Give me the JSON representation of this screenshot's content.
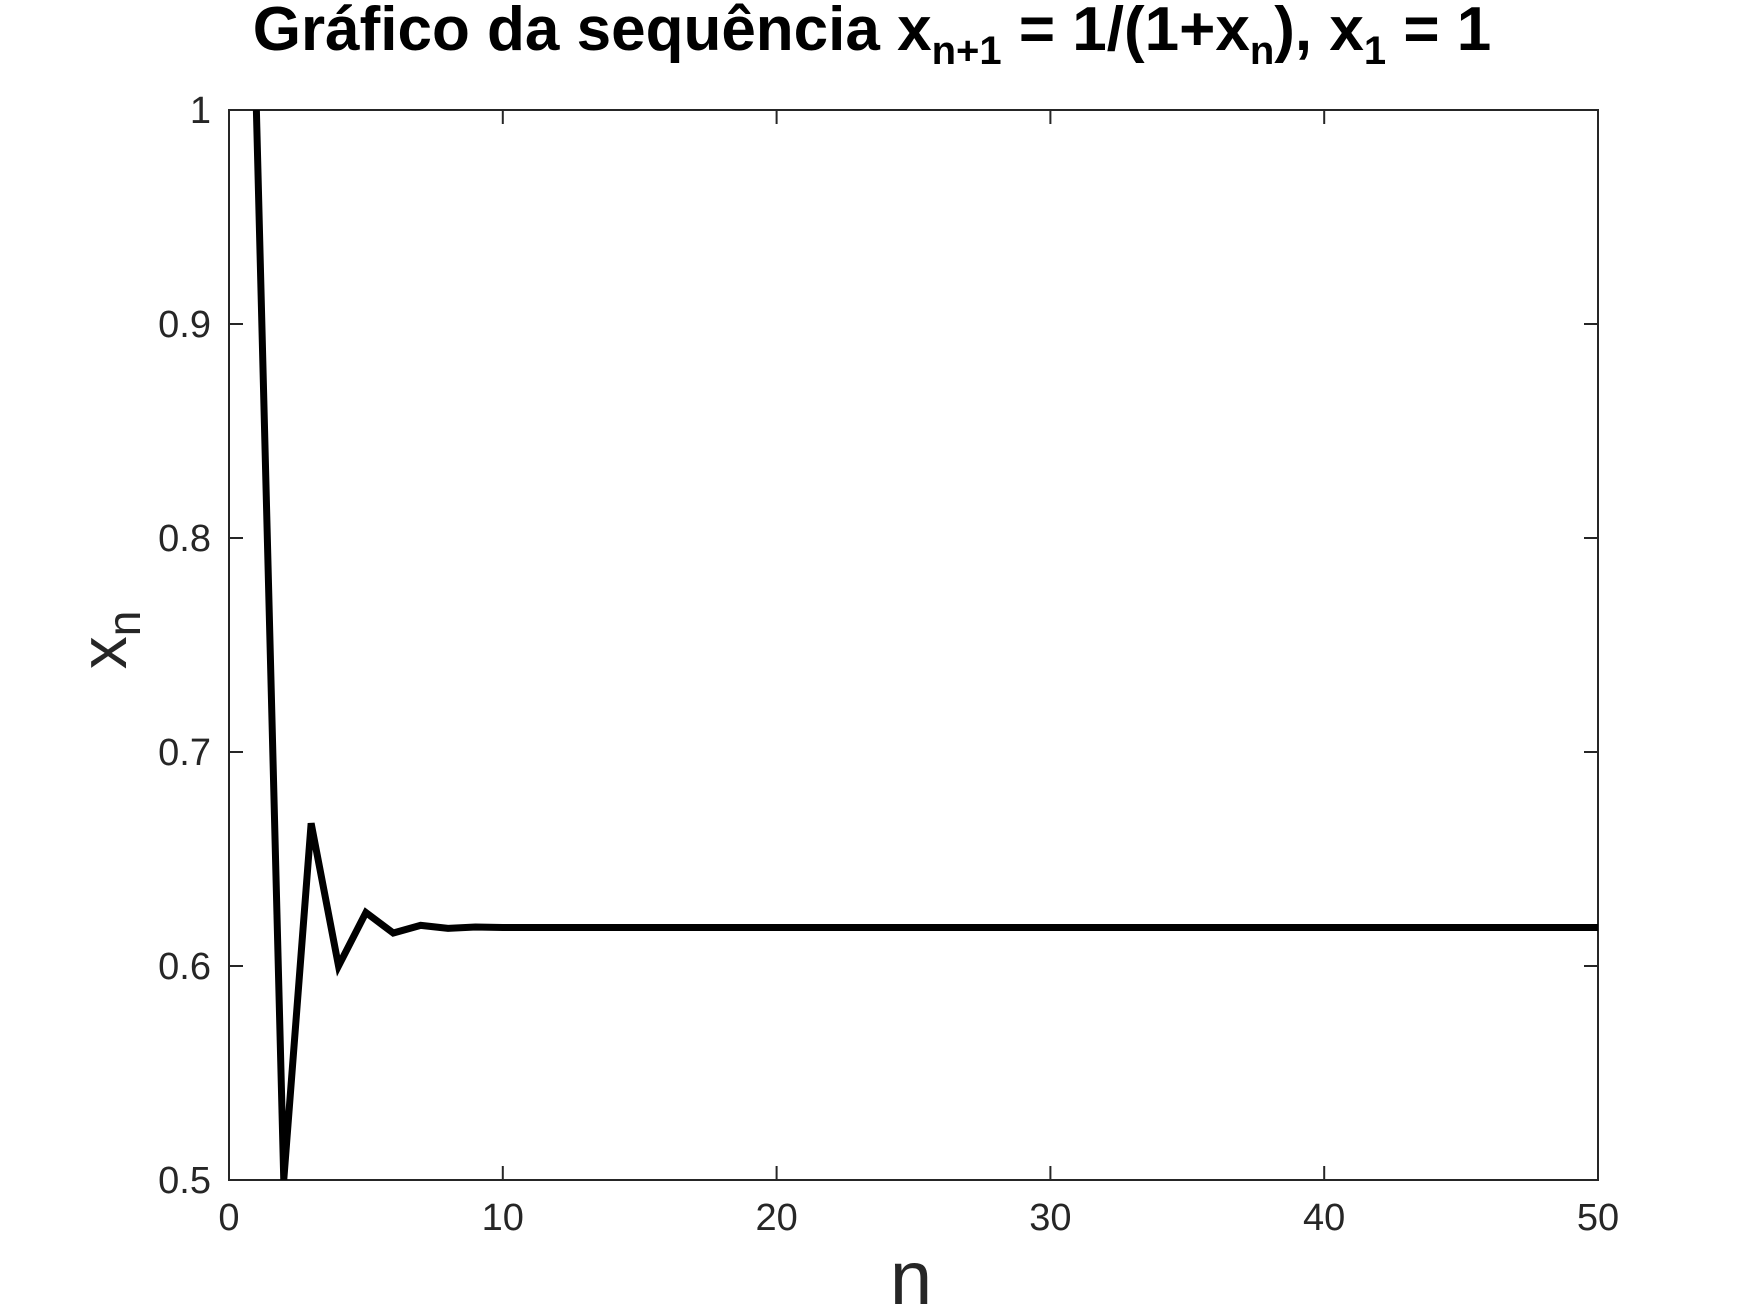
{
  "title": {
    "prefix": "Gráfico da sequência x",
    "sub1": "n+1",
    "mid1": " = 1/(1+x",
    "sub2": "n",
    "mid2": "), x",
    "sub3": "1",
    "suffix": " = 1"
  },
  "chart_data": {
    "type": "line",
    "xlabel": "n",
    "ylabel_main": "x",
    "ylabel_sub": "n",
    "xlim": [
      0,
      50
    ],
    "ylim": [
      0.5,
      1
    ],
    "xticks": [
      0,
      10,
      20,
      30,
      40,
      50
    ],
    "xtick_labels": [
      "0",
      "10",
      "20",
      "30",
      "40",
      "50"
    ],
    "yticks": [
      0.5,
      0.6,
      0.7,
      0.8,
      0.9,
      1
    ],
    "ytick_labels": [
      "0.5",
      "0.6",
      "0.7",
      "0.8",
      "0.9",
      "1"
    ],
    "grid": false,
    "line_color": "#000000",
    "series": [
      {
        "x": [
          1,
          2,
          3,
          4,
          5,
          6,
          7,
          8,
          9,
          10,
          11,
          12,
          13,
          14,
          15,
          16,
          17,
          18,
          19,
          20,
          21,
          22,
          23,
          24,
          25,
          26,
          27,
          28,
          29,
          30,
          31,
          32,
          33,
          34,
          35,
          36,
          37,
          38,
          39,
          40,
          41,
          42,
          43,
          44,
          45,
          46,
          47,
          48,
          49,
          50
        ],
        "values": [
          1,
          0.5,
          0.6667,
          0.6,
          0.625,
          0.6154,
          0.619,
          0.6176,
          0.6182,
          0.618,
          0.618,
          0.618,
          0.618,
          0.618,
          0.618,
          0.618,
          0.618,
          0.618,
          0.618,
          0.618,
          0.618,
          0.618,
          0.618,
          0.618,
          0.618,
          0.618,
          0.618,
          0.618,
          0.618,
          0.618,
          0.618,
          0.618,
          0.618,
          0.618,
          0.618,
          0.618,
          0.618,
          0.618,
          0.618,
          0.618,
          0.618,
          0.618,
          0.618,
          0.618,
          0.618,
          0.618,
          0.618,
          0.618,
          0.618,
          0.618
        ]
      }
    ]
  }
}
